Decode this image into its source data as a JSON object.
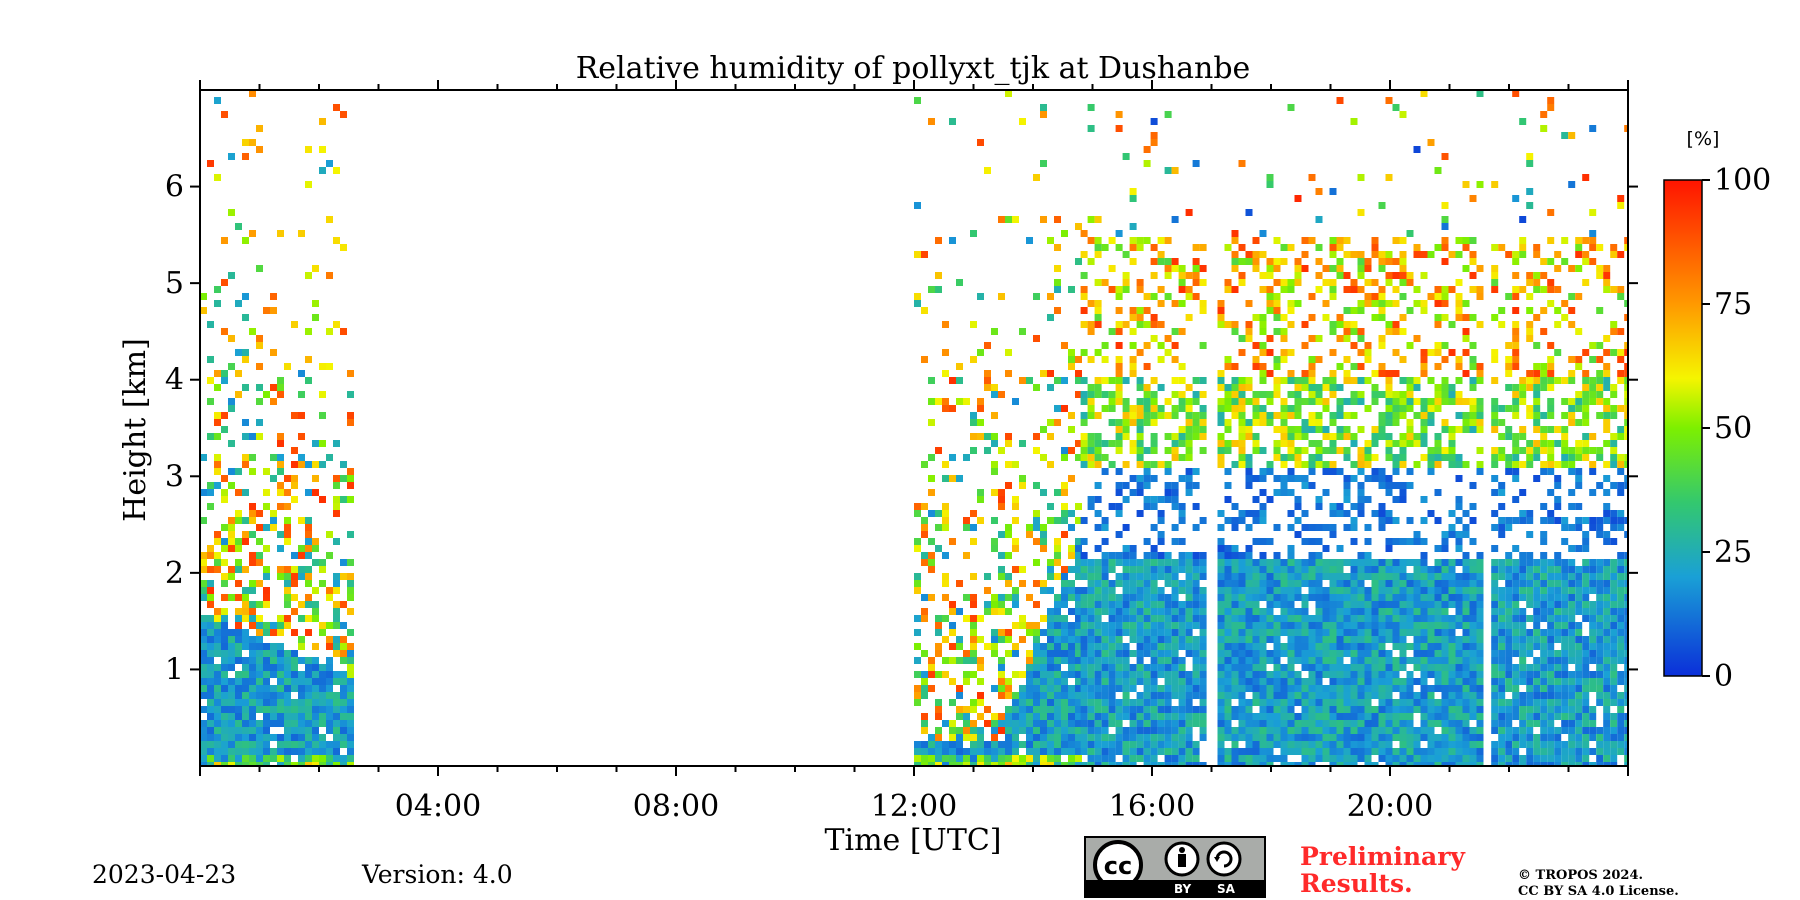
{
  "chart_data": {
    "type": "heatmap",
    "title": "Relative humidity of pollyxt_tjk at Dushanbe",
    "xlabel": "Time [UTC]",
    "ylabel": "Height [km]",
    "xlim_hours": [
      0,
      24
    ],
    "ylim_km": [
      0,
      7
    ],
    "xticks": [
      {
        "hours": 4,
        "label": "04:00"
      },
      {
        "hours": 8,
        "label": "08:00"
      },
      {
        "hours": 12,
        "label": "12:00"
      },
      {
        "hours": 16,
        "label": "16:00"
      },
      {
        "hours": 20,
        "label": "20:00"
      }
    ],
    "yticks": [
      {
        "km": 1,
        "label": "1"
      },
      {
        "km": 2,
        "label": "2"
      },
      {
        "km": 3,
        "label": "3"
      },
      {
        "km": 4,
        "label": "4"
      },
      {
        "km": 5,
        "label": "5"
      },
      {
        "km": 6,
        "label": "6"
      }
    ],
    "colorbar": {
      "unit": "[%]",
      "range": [
        0,
        100
      ],
      "ticks": [
        {
          "value": 0,
          "label": "0"
        },
        {
          "value": 25,
          "label": "25"
        },
        {
          "value": 50,
          "label": "50"
        },
        {
          "value": 75,
          "label": "75"
        },
        {
          "value": 100,
          "label": "100"
        }
      ],
      "stops": [
        {
          "value": 0,
          "color": "#0b2fd9"
        },
        {
          "value": 20,
          "color": "#1aa0d6"
        },
        {
          "value": 35,
          "color": "#33c86e"
        },
        {
          "value": 50,
          "color": "#7df000"
        },
        {
          "value": 60,
          "color": "#f5f500"
        },
        {
          "value": 75,
          "color": "#ff9900"
        },
        {
          "value": 100,
          "color": "#ff1400"
        }
      ]
    },
    "observations": [
      {
        "start_hours": 0.0,
        "end_hours": 2.5,
        "boundary_layer_top_km": 1.0,
        "moist_top_km": 6.5,
        "profile": "night"
      },
      {
        "start_hours": 12.0,
        "end_hours": 14.8,
        "boundary_layer_top_km": 0.3,
        "moist_top_km": 6.0,
        "profile": "growing"
      },
      {
        "start_hours": 14.8,
        "end_hours": 16.9,
        "boundary_layer_top_km": 2.2,
        "moist_top_km": 5.5,
        "profile": "layered"
      },
      {
        "start_hours": 17.1,
        "end_hours": 21.5,
        "boundary_layer_top_km": 2.2,
        "moist_top_km": 5.5,
        "profile": "layered"
      },
      {
        "start_hours": 21.7,
        "end_hours": 24.0,
        "boundary_layer_top_km": 2.2,
        "moist_top_km": 5.5,
        "profile": "layered"
      }
    ]
  },
  "footer": {
    "date": "2023-04-23",
    "version": "Version: 4.0",
    "license_badge": {
      "by": "BY",
      "sa": "SA",
      "cc": "cc"
    },
    "preliminary": [
      "Preliminary",
      "Results."
    ],
    "copyright": [
      "© TROPOS 2024.",
      "CC BY SA 4.0 License."
    ]
  },
  "colors": {
    "preliminary": "#ff2a2a",
    "badge_bg": "#a9aca9"
  }
}
